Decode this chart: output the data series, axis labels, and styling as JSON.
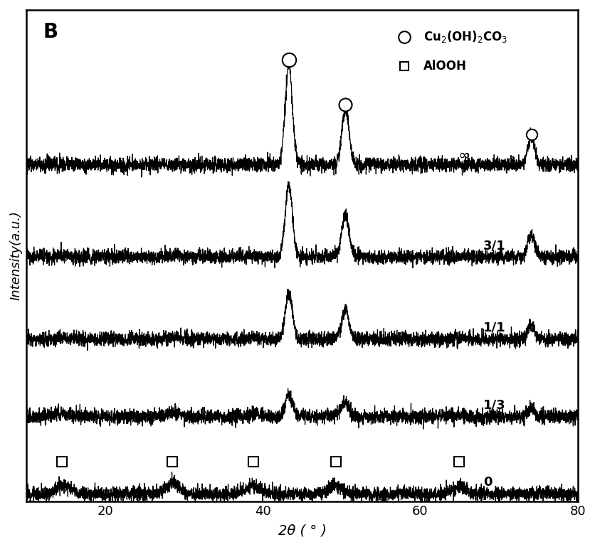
{
  "title_label": "B",
  "xlabel": "2θ ( ° )",
  "ylabel": "Intensity(a.u.)",
  "xlim": [
    10,
    80
  ],
  "background_color": "#ffffff",
  "cu_peaks": [
    43.3,
    50.5,
    74.1
  ],
  "alooh_peaks": [
    14.5,
    28.5,
    38.8,
    49.3,
    64.9
  ],
  "trace_offsets": [
    0.0,
    0.155,
    0.31,
    0.475,
    0.66
  ],
  "noise_amp": 0.007,
  "legend_circle_label": "Cu$_2$(OH)$_2$CO$_3$",
  "legend_square_label": "AlOOH"
}
